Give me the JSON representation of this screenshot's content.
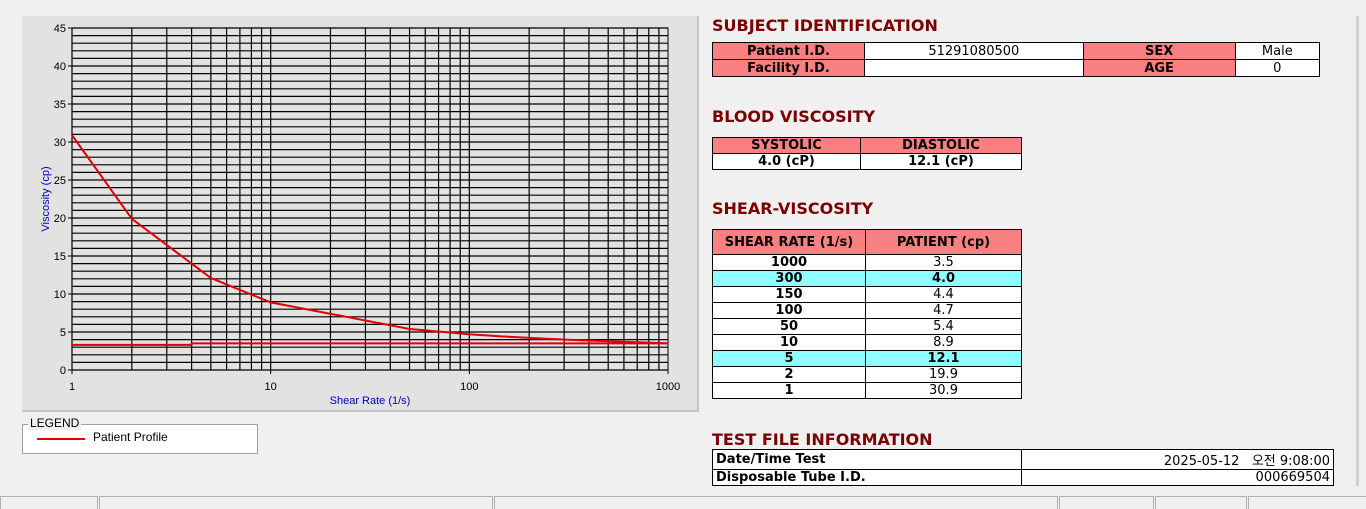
{
  "chart_data": {
    "type": "line",
    "xlabel": "Shear Rate (1/s)",
    "ylabel": "Viscosity (cp)",
    "xscale": "log",
    "xlim": [
      1,
      1000
    ],
    "ylim": [
      0,
      45
    ],
    "xticks": [
      "1",
      "10",
      "100",
      "1000"
    ],
    "yticks": [
      "0",
      "5",
      "10",
      "15",
      "20",
      "25",
      "30",
      "35",
      "40",
      "45"
    ],
    "grid": true,
    "series": [
      {
        "name": "Patient Profile",
        "color": "#e00000",
        "x": [
          1,
          2,
          5,
          10,
          50,
          100,
          150,
          300,
          1000
        ],
        "y": [
          30.9,
          19.9,
          12.1,
          8.9,
          5.4,
          4.7,
          4.4,
          4.0,
          3.5
        ]
      },
      {
        "color": "#e00000",
        "x": [
          1,
          4,
          4,
          1000
        ],
        "y": [
          3.3,
          3.3,
          3.5,
          3.5
        ]
      }
    ],
    "legend": "bottom-left"
  },
  "legend": {
    "title": "LEGEND",
    "entry": "Patient Profile"
  },
  "subject": {
    "title": "SUBJECT IDENTIFICATION",
    "patient_id_label": "Patient I.D.",
    "patient_id": "51291080500",
    "sex_label": "SEX",
    "sex": "Male",
    "facility_label": "Facility I.D.",
    "facility": "",
    "age_label": "AGE",
    "age": "0"
  },
  "blood": {
    "title": "BLOOD VISCOSITY",
    "systolic_label": "SYSTOLIC",
    "diastolic_label": "DIASTOLIC",
    "systolic": "4.0 (cP)",
    "diastolic": "12.1 (cP)"
  },
  "shear": {
    "title": "SHEAR-VISCOSITY",
    "col1": "SHEAR RATE (1/s)",
    "col2": "PATIENT (cp)",
    "rows": [
      [
        "1000",
        "3.5",
        0
      ],
      [
        "300",
        "4.0",
        1
      ],
      [
        "150",
        "4.4",
        0
      ],
      [
        "100",
        "4.7",
        0
      ],
      [
        "50",
        "5.4",
        0
      ],
      [
        "10",
        "8.9",
        0
      ],
      [
        "5",
        "12.1",
        1
      ],
      [
        "2",
        "19.9",
        0
      ],
      [
        "1",
        "30.9",
        0
      ]
    ]
  },
  "testfile": {
    "title": "TEST FILE INFORMATION",
    "date_label": "Date/Time Test",
    "date": "2025-05-12   오전 9:08:00",
    "tube_label": "Disposable Tube I.D.",
    "tube": "000669504"
  }
}
